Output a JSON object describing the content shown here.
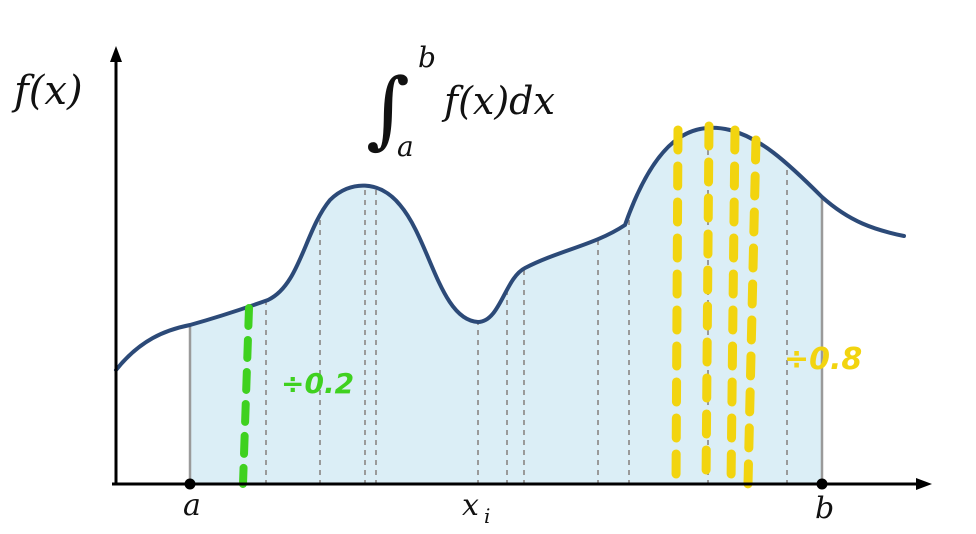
{
  "diagram": {
    "y_axis_label": "f(x)",
    "integral": {
      "upper": "b",
      "lower": "a",
      "integrand": "f(x)dx"
    },
    "x_labels": {
      "a": "a",
      "xi": "x",
      "xi_sub": "i",
      "b": "b"
    },
    "annotations": {
      "left_note": "÷0.2",
      "right_note": "÷0.8"
    },
    "colors": {
      "curve": "#2c4a78",
      "fill": "#dbeef6",
      "axis": "#000000",
      "grid_line": "#9a9a9a",
      "green_marker": "#3fd11f",
      "yellow_marker": "#f2d40f"
    }
  }
}
